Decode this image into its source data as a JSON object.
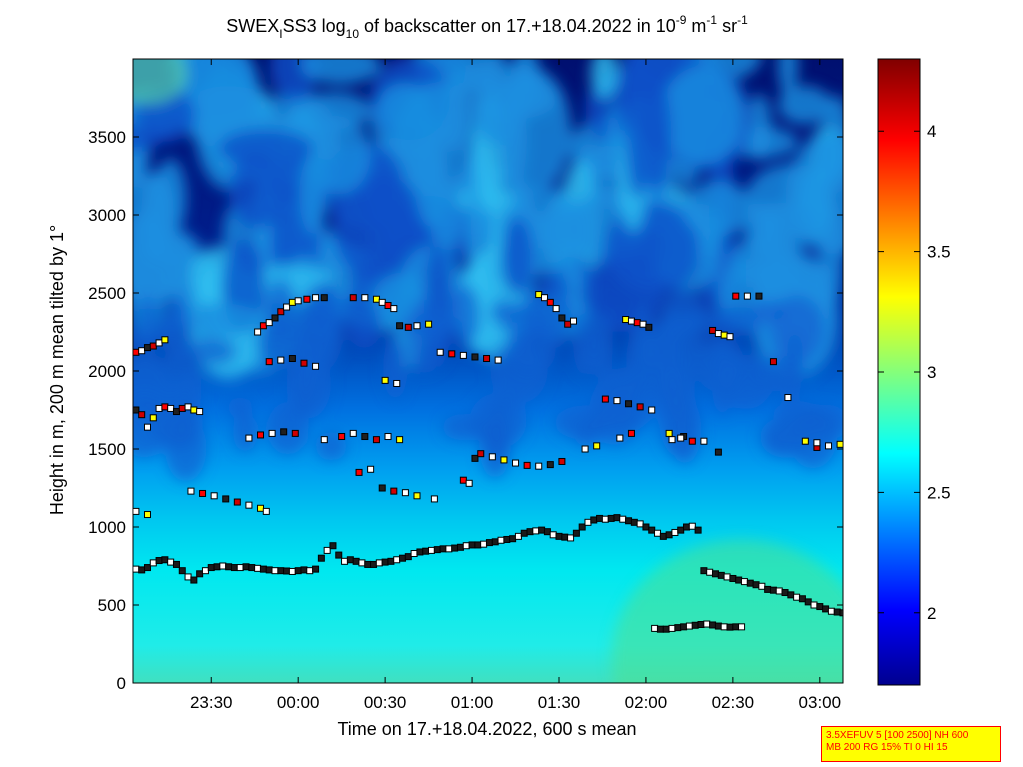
{
  "chart_data": {
    "type": "heatmap",
    "title": {
      "p1": "SWEX",
      "p1_sub": "I",
      "p2": "SS3 log",
      "p2_sub": "10",
      "p3": " of backscatter on 17.+18.04.2022 in 10",
      "p3_sup1": "-9",
      "p4": " m",
      "p4_sup": "-1",
      "p5": " sr",
      "p5_sup": "-1"
    },
    "xlabel": "Time on 17.+18.04.2022, 600 s mean",
    "ylabel": "Height in m, 200 m mean tilted by 1°",
    "xlim": [
      "23:03",
      "03:08"
    ],
    "ylim": [
      0,
      4000
    ],
    "x_tick_labels": [
      "23:30",
      "00:00",
      "00:30",
      "01:00",
      "01:30",
      "02:00",
      "02:30",
      "03:00"
    ],
    "x_tick_minutes": [
      27,
      57,
      87,
      117,
      147,
      177,
      207,
      237
    ],
    "y_tick_values": [
      0,
      500,
      1000,
      1500,
      2000,
      2500,
      3000,
      3500
    ],
    "colorbar": {
      "range": [
        1.7,
        4.3
      ],
      "tick_values": [
        2,
        2.5,
        3,
        3.5,
        4
      ],
      "colormap": "jet"
    },
    "series": [
      {
        "name": "",
        "marker": "square",
        "points": [
          [
            1,
            730
          ],
          [
            3,
            725
          ],
          [
            5,
            740
          ],
          [
            7,
            770
          ],
          [
            9,
            785
          ],
          [
            11,
            790
          ],
          [
            13,
            775
          ],
          [
            15,
            760
          ],
          [
            17,
            720
          ],
          [
            19,
            680
          ],
          [
            21,
            660
          ],
          [
            23,
            700
          ],
          [
            25,
            720
          ],
          [
            27,
            740
          ],
          [
            29,
            745
          ],
          [
            31,
            750
          ],
          [
            33,
            745
          ],
          [
            35,
            740
          ],
          [
            37,
            740
          ],
          [
            39,
            745
          ],
          [
            41,
            740
          ],
          [
            43,
            735
          ],
          [
            45,
            730
          ],
          [
            47,
            725
          ],
          [
            49,
            720
          ],
          [
            51,
            720
          ],
          [
            53,
            718
          ],
          [
            55,
            715
          ],
          [
            57,
            720
          ],
          [
            59,
            725
          ],
          [
            61,
            720
          ],
          [
            63,
            730
          ],
          [
            65,
            800
          ],
          [
            67,
            850
          ],
          [
            69,
            880
          ],
          [
            71,
            820
          ],
          [
            73,
            780
          ],
          [
            75,
            790
          ],
          [
            77,
            780
          ],
          [
            79,
            770
          ],
          [
            81,
            760
          ],
          [
            83,
            760
          ],
          [
            85,
            770
          ],
          [
            87,
            775
          ],
          [
            89,
            780
          ],
          [
            91,
            790
          ],
          [
            93,
            800
          ],
          [
            95,
            810
          ],
          [
            97,
            830
          ],
          [
            99,
            840
          ],
          [
            101,
            845
          ],
          [
            103,
            850
          ],
          [
            105,
            855
          ],
          [
            107,
            860
          ],
          [
            109,
            860
          ],
          [
            111,
            865
          ],
          [
            113,
            870
          ],
          [
            115,
            880
          ],
          [
            117,
            885
          ],
          [
            119,
            885
          ],
          [
            121,
            890
          ],
          [
            123,
            900
          ],
          [
            125,
            905
          ],
          [
            127,
            915
          ],
          [
            129,
            920
          ],
          [
            131,
            925
          ],
          [
            133,
            940
          ],
          [
            135,
            960
          ],
          [
            137,
            970
          ],
          [
            139,
            975
          ],
          [
            141,
            980
          ],
          [
            143,
            970
          ],
          [
            145,
            950
          ],
          [
            147,
            940
          ],
          [
            149,
            935
          ],
          [
            151,
            930
          ],
          [
            153,
            960
          ],
          [
            155,
            1000
          ],
          [
            157,
            1030
          ],
          [
            159,
            1045
          ],
          [
            161,
            1055
          ],
          [
            163,
            1050
          ],
          [
            165,
            1055
          ],
          [
            167,
            1060
          ],
          [
            169,
            1050
          ],
          [
            171,
            1040
          ],
          [
            173,
            1030
          ],
          [
            175,
            1020
          ],
          [
            177,
            1000
          ],
          [
            179,
            980
          ],
          [
            181,
            960
          ],
          [
            183,
            940
          ],
          [
            185,
            950
          ],
          [
            187,
            965
          ],
          [
            189,
            980
          ],
          [
            191,
            1000
          ],
          [
            193,
            1005
          ],
          [
            195,
            980
          ],
          [
            197,
            720
          ],
          [
            199,
            710
          ],
          [
            201,
            700
          ],
          [
            203,
            690
          ],
          [
            205,
            680
          ],
          [
            207,
            670
          ],
          [
            209,
            660
          ],
          [
            211,
            650
          ],
          [
            213,
            640
          ],
          [
            215,
            630
          ],
          [
            217,
            620
          ],
          [
            219,
            600
          ],
          [
            221,
            595
          ],
          [
            223,
            590
          ],
          [
            225,
            580
          ],
          [
            227,
            565
          ],
          [
            229,
            550
          ],
          [
            231,
            540
          ],
          [
            233,
            520
          ],
          [
            235,
            500
          ],
          [
            237,
            490
          ],
          [
            239,
            475
          ],
          [
            241,
            460
          ],
          [
            243,
            455
          ],
          [
            245,
            450
          ]
        ]
      },
      {
        "name": "",
        "marker": "square",
        "points": [
          [
            180,
            350
          ],
          [
            182,
            345
          ],
          [
            184,
            345
          ],
          [
            186,
            350
          ],
          [
            188,
            355
          ],
          [
            190,
            360
          ],
          [
            192,
            365
          ],
          [
            194,
            370
          ],
          [
            196,
            375
          ],
          [
            198,
            378
          ],
          [
            200,
            372
          ],
          [
            202,
            365
          ],
          [
            204,
            360
          ],
          [
            206,
            358
          ],
          [
            208,
            360
          ],
          [
            210,
            360
          ]
        ]
      },
      {
        "name": "",
        "marker": "square",
        "points": [
          [
            1,
            1100
          ],
          [
            5,
            1080
          ],
          [
            20,
            1230
          ],
          [
            24,
            1215
          ],
          [
            28,
            1200
          ],
          [
            32,
            1180
          ],
          [
            36,
            1160
          ],
          [
            40,
            1140
          ],
          [
            44,
            1120
          ],
          [
            46,
            1100
          ],
          [
            78,
            1350
          ],
          [
            82,
            1370
          ],
          [
            86,
            1250
          ],
          [
            90,
            1230
          ],
          [
            94,
            1220
          ],
          [
            98,
            1200
          ],
          [
            104,
            1180
          ],
          [
            114,
            1300
          ],
          [
            116,
            1280
          ],
          [
            118,
            1440
          ],
          [
            120,
            1470
          ],
          [
            124,
            1450
          ],
          [
            128,
            1430
          ],
          [
            132,
            1410
          ],
          [
            136,
            1395
          ],
          [
            140,
            1390
          ],
          [
            144,
            1400
          ],
          [
            148,
            1420
          ],
          [
            156,
            1500
          ],
          [
            160,
            1520
          ],
          [
            168,
            1570
          ],
          [
            172,
            1600
          ],
          [
            186,
            1560
          ],
          [
            190,
            1580
          ],
          [
            236,
            1510
          ],
          [
            240,
            1520
          ],
          [
            244,
            1530
          ],
          [
            66,
            1560
          ],
          [
            72,
            1580
          ],
          [
            76,
            1600
          ],
          [
            80,
            1580
          ],
          [
            84,
            1560
          ],
          [
            88,
            1580
          ],
          [
            92,
            1560
          ],
          [
            40,
            1570
          ],
          [
            44,
            1590
          ],
          [
            48,
            1600
          ],
          [
            52,
            1610
          ],
          [
            56,
            1600
          ]
        ]
      },
      {
        "name": "",
        "marker": "square",
        "points": [
          [
            1,
            1750
          ],
          [
            3,
            1720
          ],
          [
            5,
            1640
          ],
          [
            7,
            1700
          ],
          [
            9,
            1760
          ],
          [
            11,
            1770
          ],
          [
            13,
            1760
          ],
          [
            15,
            1740
          ],
          [
            17,
            1760
          ],
          [
            19,
            1770
          ],
          [
            21,
            1750
          ],
          [
            23,
            1740
          ],
          [
            1,
            2120
          ],
          [
            3,
            2130
          ],
          [
            5,
            2150
          ],
          [
            7,
            2160
          ],
          [
            9,
            2180
          ],
          [
            11,
            2200
          ],
          [
            43,
            2250
          ],
          [
            45,
            2290
          ],
          [
            47,
            2310
          ],
          [
            49,
            2340
          ],
          [
            51,
            2380
          ],
          [
            53,
            2410
          ],
          [
            55,
            2440
          ],
          [
            57,
            2450
          ],
          [
            60,
            2460
          ],
          [
            63,
            2470
          ],
          [
            66,
            2470
          ],
          [
            76,
            2470
          ],
          [
            80,
            2470
          ],
          [
            84,
            2460
          ],
          [
            86,
            2440
          ],
          [
            88,
            2420
          ],
          [
            90,
            2400
          ],
          [
            92,
            2290
          ],
          [
            95,
            2280
          ],
          [
            98,
            2290
          ],
          [
            102,
            2300
          ],
          [
            106,
            2120
          ],
          [
            110,
            2110
          ],
          [
            114,
            2100
          ],
          [
            118,
            2090
          ],
          [
            122,
            2080
          ],
          [
            126,
            2070
          ],
          [
            140,
            2490
          ],
          [
            142,
            2470
          ],
          [
            144,
            2440
          ],
          [
            146,
            2400
          ],
          [
            148,
            2340
          ],
          [
            150,
            2300
          ],
          [
            152,
            2320
          ],
          [
            170,
            2330
          ],
          [
            172,
            2320
          ],
          [
            174,
            2310
          ],
          [
            176,
            2300
          ],
          [
            178,
            2280
          ],
          [
            200,
            2260
          ],
          [
            202,
            2240
          ],
          [
            204,
            2230
          ],
          [
            206,
            2220
          ],
          [
            208,
            2480
          ],
          [
            212,
            2480
          ],
          [
            216,
            2480
          ],
          [
            221,
            2060
          ],
          [
            226,
            1830
          ],
          [
            232,
            1550
          ],
          [
            236,
            1540
          ],
          [
            47,
            2060
          ],
          [
            51,
            2070
          ],
          [
            55,
            2080
          ],
          [
            59,
            2050
          ],
          [
            63,
            2030
          ],
          [
            87,
            1940
          ],
          [
            91,
            1920
          ],
          [
            163,
            1820
          ],
          [
            167,
            1810
          ],
          [
            171,
            1790
          ],
          [
            175,
            1770
          ],
          [
            179,
            1750
          ],
          [
            185,
            1600
          ],
          [
            189,
            1570
          ],
          [
            193,
            1550
          ],
          [
            197,
            1550
          ],
          [
            202,
            1480
          ]
        ]
      }
    ]
  },
  "info_box": {
    "line1": "3.5XEFUV 5 [100 2500] NH 600",
    "line2": "MB 200 RG 15% TI 0 HI 15"
  }
}
